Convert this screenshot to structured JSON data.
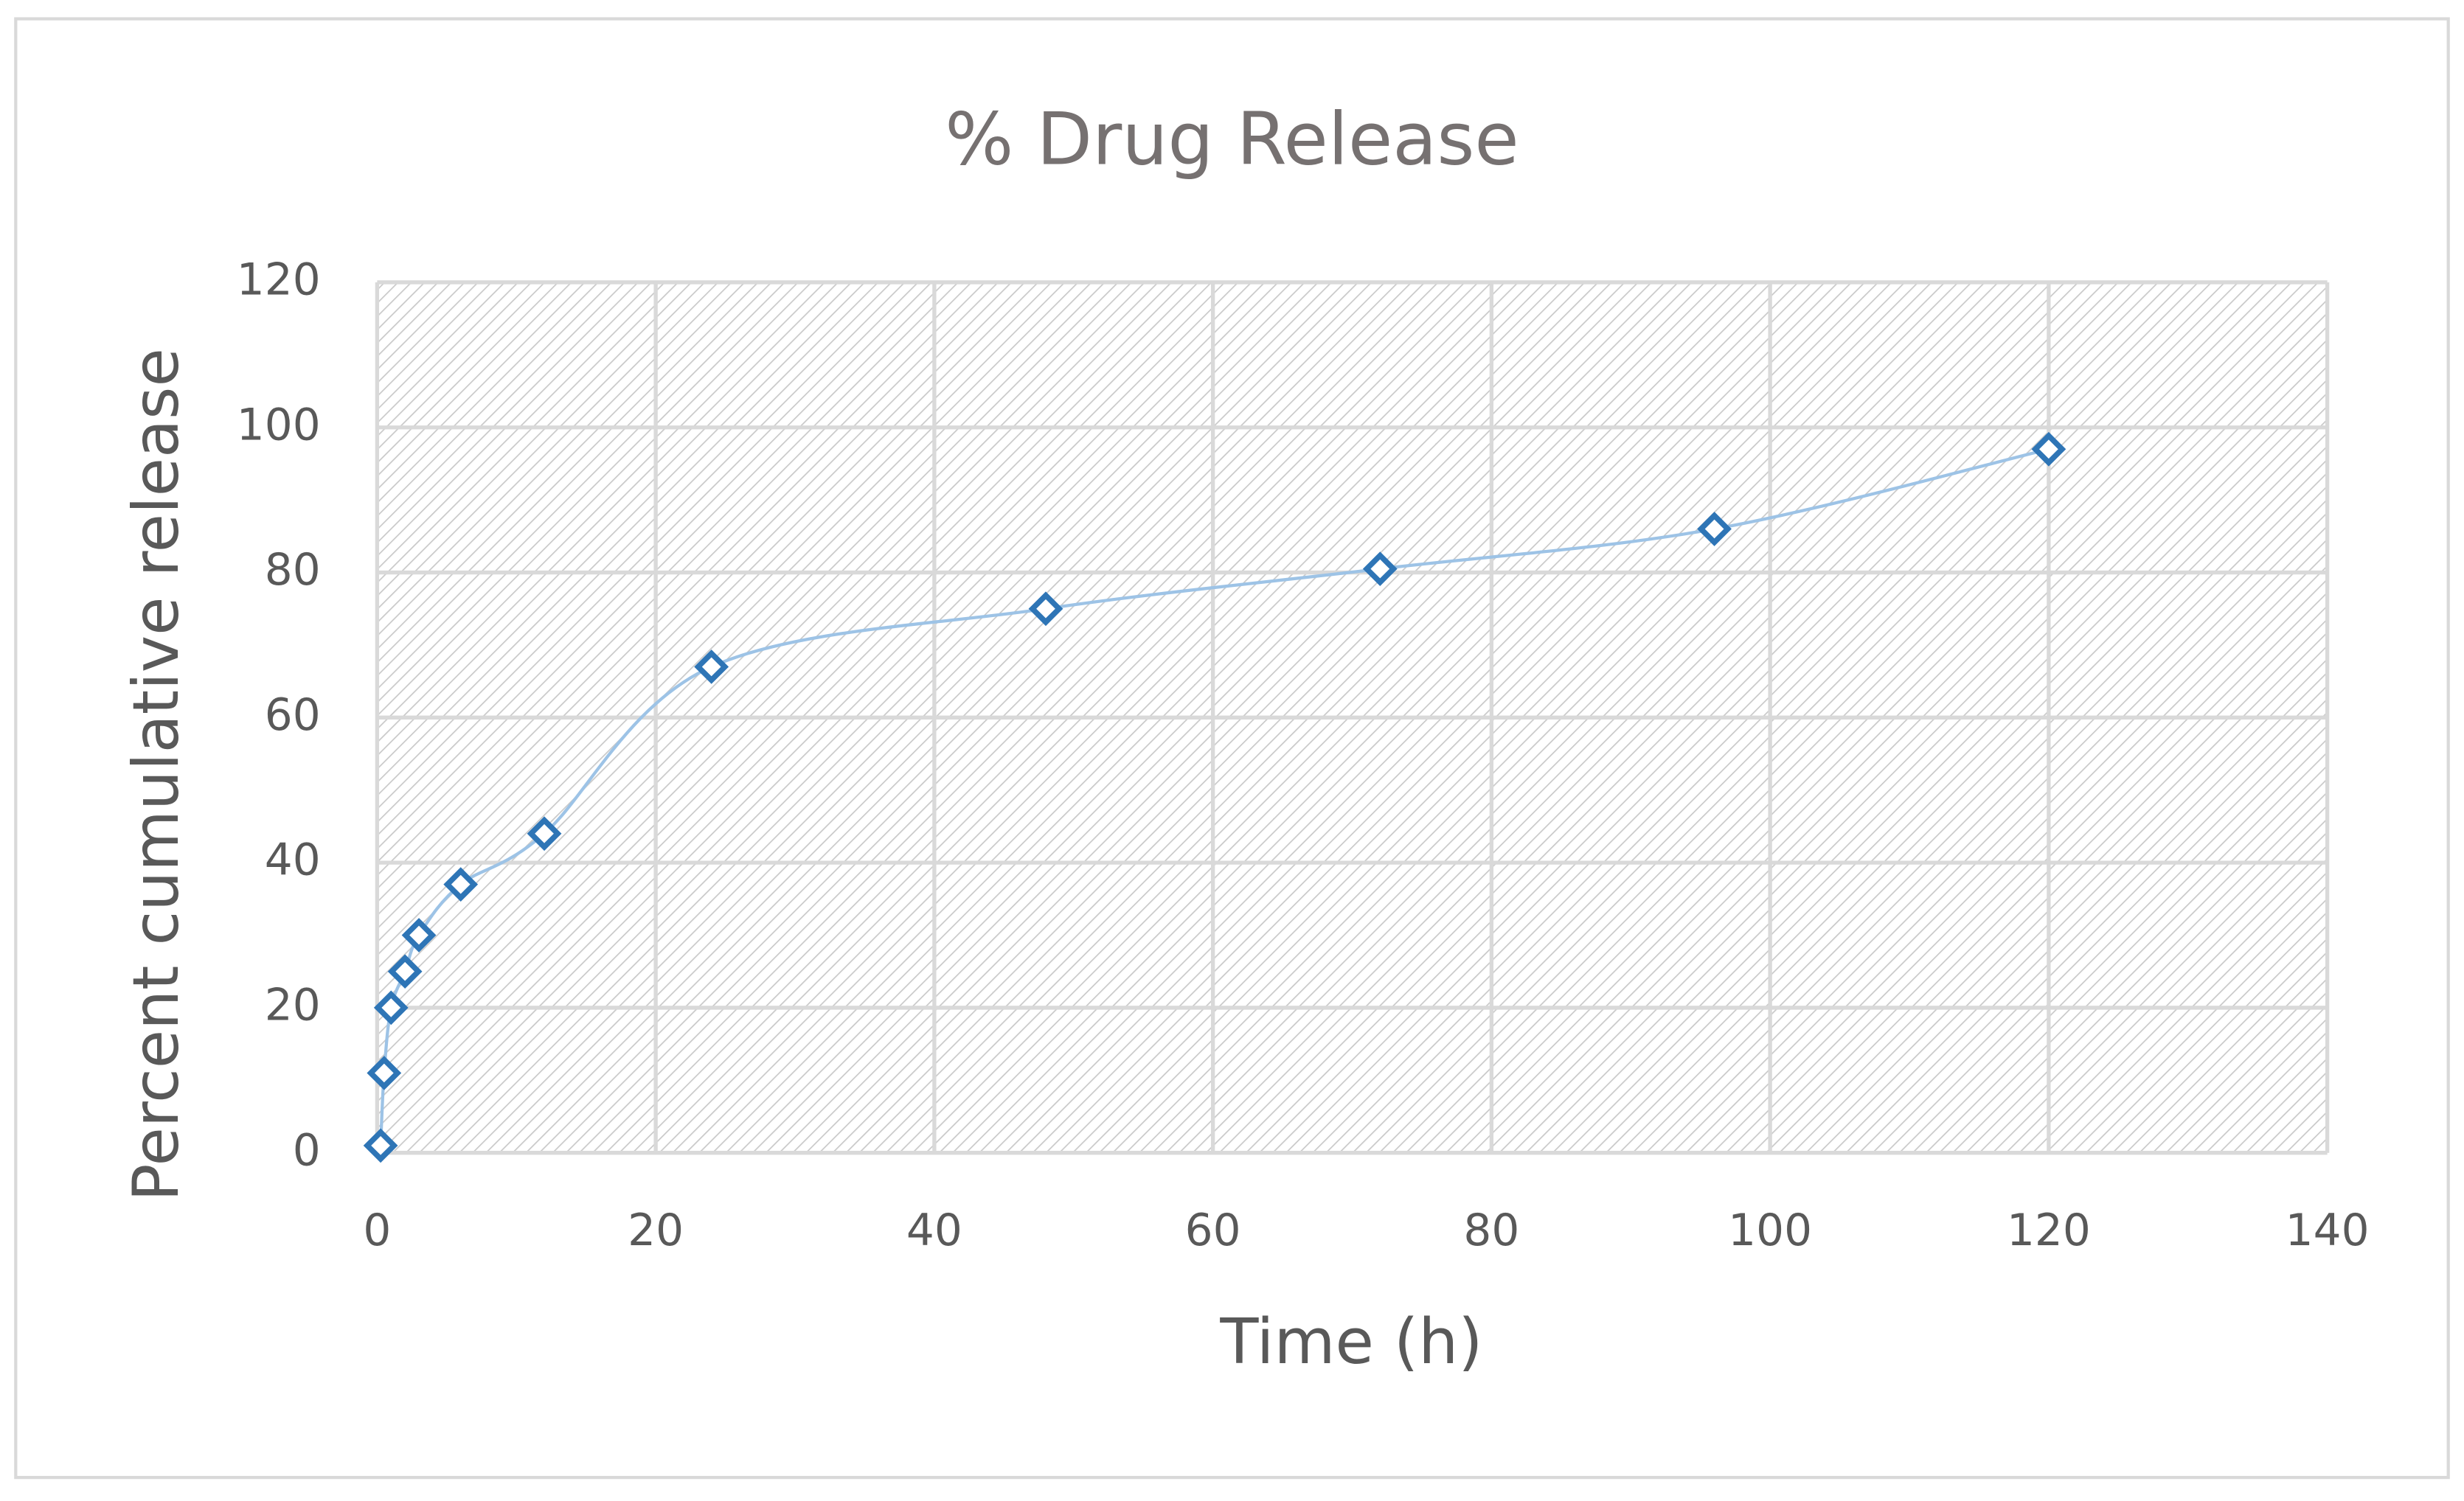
{
  "chart_data": {
    "type": "scatter",
    "title": "% Drug Release",
    "x_label": "Time (h)",
    "y_label": "Percent cumulative release",
    "series": [
      {
        "color": "#2e75b6",
        "line_color": "#9dc3e6",
        "smooth": true,
        "x": [
          0.25,
          0.5,
          1,
          2,
          3,
          6,
          12,
          24,
          48,
          72,
          96,
          120
        ],
        "values": [
          1,
          11,
          20,
          25,
          30,
          37,
          44,
          67,
          75,
          80.5,
          86,
          97
        ]
      }
    ],
    "xlim": [
      0,
      140
    ],
    "xticks": [
      0,
      20,
      40,
      60,
      80,
      100,
      120,
      140
    ],
    "ylim": [
      0,
      120
    ],
    "yticks": [
      0,
      20,
      40,
      60,
      80,
      100,
      120
    ],
    "grid": true
  }
}
